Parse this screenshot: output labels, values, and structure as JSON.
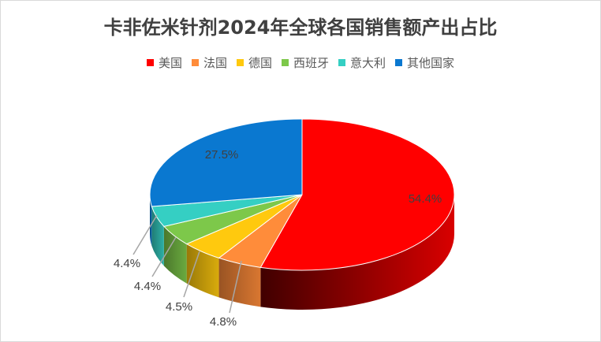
{
  "chart_data": {
    "type": "pie",
    "style": "3d",
    "title": "卡非佐米针剂2024年全球各国销售额产出占比",
    "legend_position": "top",
    "categories": [
      "美国",
      "法国",
      "德国",
      "西班牙",
      "意大利",
      "其他国家"
    ],
    "values": [
      54.4,
      4.8,
      4.5,
      4.4,
      4.4,
      27.5
    ],
    "labels": [
      "54.4%",
      "4.8%",
      "4.5%",
      "4.4%",
      "4.4%",
      "27.5%"
    ],
    "colors": [
      "#FF0000",
      "#FF8C3A",
      "#FFC90E",
      "#7DC84A",
      "#35CFC3",
      "#0A78D0"
    ]
  }
}
